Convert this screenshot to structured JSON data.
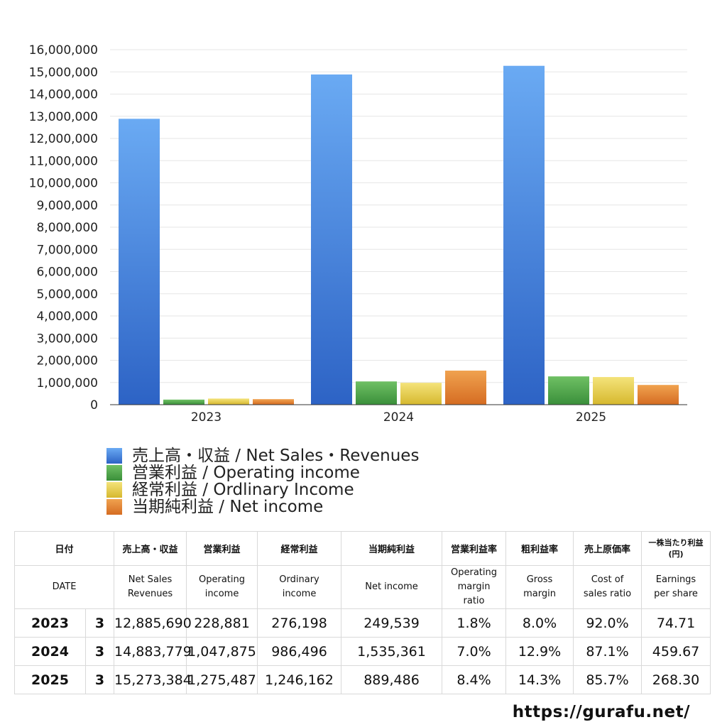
{
  "chart_data": {
    "type": "bar",
    "categories": [
      "2023",
      "2024",
      "2025"
    ],
    "ylim": [
      0,
      16000000
    ],
    "yticks": [
      "0",
      "1,000,000",
      "2,000,000",
      "3,000,000",
      "4,000,000",
      "5,000,000",
      "6,000,000",
      "7,000,000",
      "8,000,000",
      "9,000,000",
      "10,000,000",
      "11,000,000",
      "12,000,000",
      "13,000,000",
      "14,000,000",
      "15,000,000",
      "16,000,000"
    ],
    "grid": true,
    "legend_position": "bottom-left",
    "series": [
      {
        "name": "売上高・収益 / Net Sales・Revenues",
        "color_top": "#6aaaf3",
        "color_bottom": "#2d63c5",
        "values": [
          12885690,
          14883779,
          15273384
        ]
      },
      {
        "name": "営業利益 / Operating income",
        "color_top": "#6fc064",
        "color_bottom": "#3a8f3a",
        "values": [
          228881,
          1047875,
          1275487
        ]
      },
      {
        "name": "経常利益 / Ordlinary Income",
        "color_top": "#f4e37a",
        "color_bottom": "#d6b82e",
        "values": [
          276198,
          986496,
          1246162
        ]
      },
      {
        "name": "当期純利益 / Net income",
        "color_top": "#f0a24f",
        "color_bottom": "#d56c22",
        "values": [
          249539,
          1535361,
          889486
        ]
      }
    ]
  },
  "table": {
    "header_jp": {
      "date": "日付",
      "net_sales": "売上高・収益",
      "operating_income": "営業利益",
      "ordinary_income": "経常利益",
      "net_income": "当期純利益",
      "operating_margin": "営業利益率",
      "gross_margin": "粗利益率",
      "cost_ratio": "売上原価率",
      "eps_line1": "一株当たり利益",
      "eps_line2": "(円)"
    },
    "header_en": {
      "date": "DATE",
      "net_sales_1": "Net Sales",
      "net_sales_2": "Revenues",
      "operating_income_1": "Operating",
      "operating_income_2": "income",
      "ordinary_income_1": "Ordinary",
      "ordinary_income_2": "income",
      "net_income": "Net income",
      "operating_margin_1": "Operating",
      "operating_margin_2": "margin",
      "operating_margin_3": "ratio",
      "gross_margin_1": "Gross",
      "gross_margin_2": "margin",
      "cost_ratio_1": "Cost of",
      "cost_ratio_2": "sales ratio",
      "eps_1": "Earnings",
      "eps_2": "per share"
    },
    "rows": [
      {
        "year": "2023",
        "month": "3",
        "net_sales": "12,885,690",
        "operating_income": "228,881",
        "ordinary_income": "276,198",
        "net_income": "249,539",
        "operating_margin": "1.8%",
        "gross_margin": "8.0%",
        "cost_ratio": "92.0%",
        "eps": "74.71"
      },
      {
        "year": "2024",
        "month": "3",
        "net_sales": "14,883,779",
        "operating_income": "1,047,875",
        "ordinary_income": "986,496",
        "net_income": "1,535,361",
        "operating_margin": "7.0%",
        "gross_margin": "12.9%",
        "cost_ratio": "87.1%",
        "eps": "459.67"
      },
      {
        "year": "2025",
        "month": "3",
        "net_sales": "15,273,384",
        "operating_income": "1,275,487",
        "ordinary_income": "1,246,162",
        "net_income": "889,486",
        "operating_margin": "8.4%",
        "gross_margin": "14.3%",
        "cost_ratio": "85.7%",
        "eps": "268.30"
      }
    ]
  },
  "footer": {
    "url": "https://gurafu.net/"
  }
}
